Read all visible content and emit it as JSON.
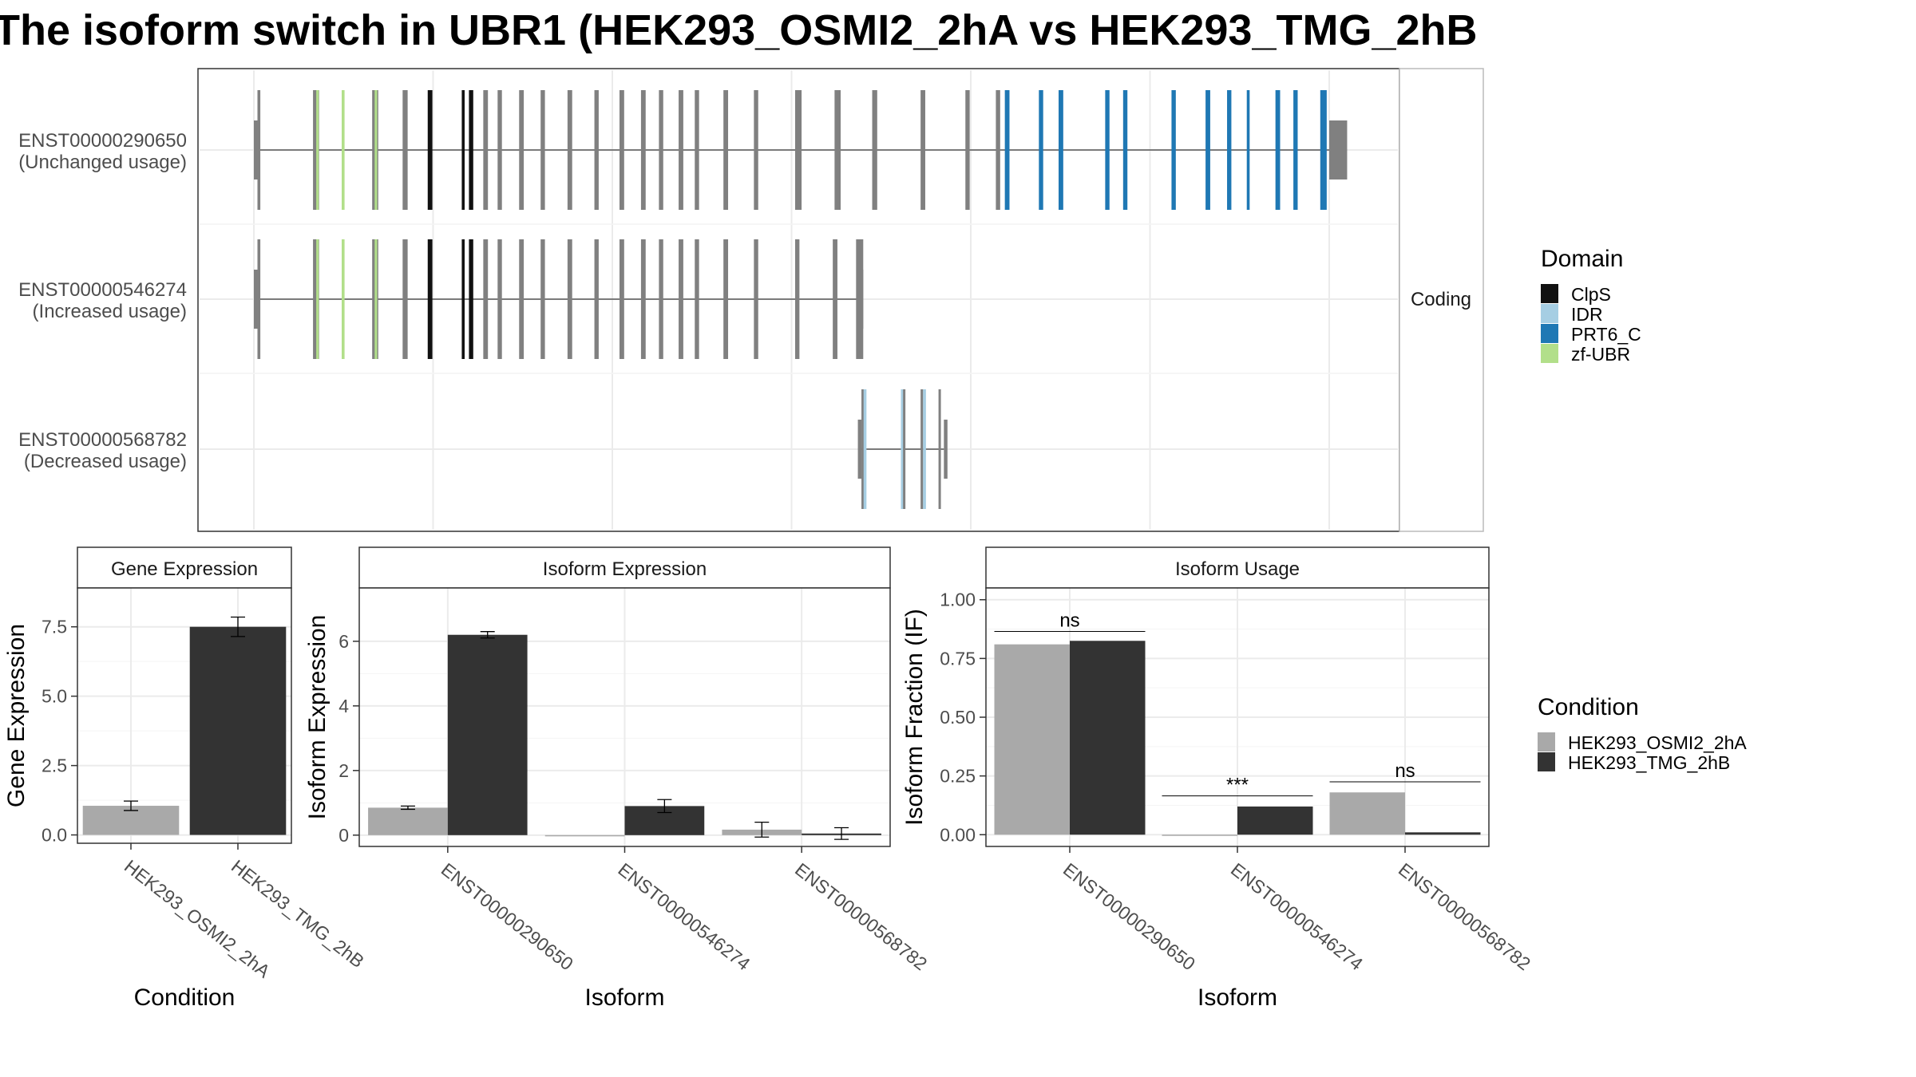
{
  "title": "The isoform switch in UBR1 (HEK293_OSMI2_2hA vs HEK293_TMG_2hB",
  "colors": {
    "cond_A": "#a9a9a9",
    "cond_B": "#333333",
    "exon": "#808080",
    "intron": "#555555",
    "domains": {
      "ClpS": "#111111",
      "IDR": "#a6cee3",
      "PRT6_C": "#1f78b4",
      "zf-UBR": "#b2df8a"
    }
  },
  "chart_data": [
    {
      "type": "gene_structure",
      "strip_label": "Coding",
      "legend_title": "Domain",
      "domains": [
        "ClpS",
        "IDR",
        "PRT6_C",
        "zf-UBR"
      ],
      "transcripts": [
        {
          "id": "ENST00000290650",
          "usage": "(Unchanged usage)",
          "span": [
            1.0,
            300.0
          ],
          "utr": [
            [
              0.0,
              1.0
            ],
            [
              300.0,
              305.0
            ]
          ],
          "exons": [
            {
              "x": 1.0,
              "w": 0.8,
              "d": null
            },
            {
              "x": 16.5,
              "w": 1.7,
              "d": null
            },
            {
              "x": 17.4,
              "w": 0.7,
              "d": "zf-UBR"
            },
            {
              "x": 24.5,
              "w": 0.8,
              "d": "zf-UBR"
            },
            {
              "x": 33.0,
              "w": 1.7,
              "d": null
            },
            {
              "x": 33.7,
              "w": 0.7,
              "d": "zf-UBR"
            },
            {
              "x": 41.5,
              "w": 1.4,
              "d": null
            },
            {
              "x": 48.5,
              "w": 1.3,
              "d": "ClpS"
            },
            {
              "x": 58.0,
              "w": 0.8,
              "d": "ClpS"
            },
            {
              "x": 60.0,
              "w": 1.2,
              "d": "ClpS"
            },
            {
              "x": 64.0,
              "w": 1.3,
              "d": null
            },
            {
              "x": 68.0,
              "w": 1.2,
              "d": null
            },
            {
              "x": 74.0,
              "w": 1.3,
              "d": null
            },
            {
              "x": 80.0,
              "w": 1.2,
              "d": null
            },
            {
              "x": 87.5,
              "w": 1.3,
              "d": null
            },
            {
              "x": 95.0,
              "w": 1.2,
              "d": null
            },
            {
              "x": 102.0,
              "w": 1.3,
              "d": null
            },
            {
              "x": 108.0,
              "w": 1.3,
              "d": null
            },
            {
              "x": 113.0,
              "w": 1.2,
              "d": null
            },
            {
              "x": 118.5,
              "w": 1.3,
              "d": null
            },
            {
              "x": 123.0,
              "w": 1.2,
              "d": null
            },
            {
              "x": 131.0,
              "w": 1.3,
              "d": null
            },
            {
              "x": 139.5,
              "w": 1.2,
              "d": null
            },
            {
              "x": 151.0,
              "w": 1.8,
              "d": null
            },
            {
              "x": 162.0,
              "w": 1.7,
              "d": null
            },
            {
              "x": 172.5,
              "w": 1.4,
              "d": null
            },
            {
              "x": 186.0,
              "w": 1.3,
              "d": null
            },
            {
              "x": 198.5,
              "w": 1.2,
              "d": null
            },
            {
              "x": 207.0,
              "w": 1.2,
              "d": null
            },
            {
              "x": 209.5,
              "w": 1.3,
              "d": "PRT6_C"
            },
            {
              "x": 219.0,
              "w": 1.2,
              "d": "PRT6_C"
            },
            {
              "x": 224.5,
              "w": 1.3,
              "d": "PRT6_C"
            },
            {
              "x": 237.5,
              "w": 1.2,
              "d": "PRT6_C"
            },
            {
              "x": 242.5,
              "w": 1.2,
              "d": "PRT6_C"
            },
            {
              "x": 256.0,
              "w": 1.2,
              "d": "PRT6_C"
            },
            {
              "x": 265.5,
              "w": 1.3,
              "d": "PRT6_C"
            },
            {
              "x": 271.5,
              "w": 1.2,
              "d": "PRT6_C"
            },
            {
              "x": 277.0,
              "w": 0.8,
              "d": "PRT6_C"
            },
            {
              "x": 285.0,
              "w": 1.3,
              "d": "PRT6_C"
            },
            {
              "x": 290.0,
              "w": 1.2,
              "d": "PRT6_C"
            },
            {
              "x": 297.5,
              "w": 1.8,
              "d": "PRT6_C"
            }
          ]
        },
        {
          "id": "ENST00000546274",
          "usage": "(Increased usage)",
          "span": [
            1.0,
            169.5
          ],
          "utr": [
            [
              0.0,
              1.0
            ],
            [
              169.0,
              170.0
            ]
          ],
          "exons": [
            {
              "x": 1.0,
              "w": 0.8,
              "d": null
            },
            {
              "x": 16.5,
              "w": 1.7,
              "d": null
            },
            {
              "x": 17.4,
              "w": 0.7,
              "d": "zf-UBR"
            },
            {
              "x": 24.5,
              "w": 0.8,
              "d": "zf-UBR"
            },
            {
              "x": 33.0,
              "w": 1.7,
              "d": null
            },
            {
              "x": 33.7,
              "w": 0.7,
              "d": "zf-UBR"
            },
            {
              "x": 41.5,
              "w": 1.4,
              "d": null
            },
            {
              "x": 48.5,
              "w": 1.3,
              "d": "ClpS"
            },
            {
              "x": 58.0,
              "w": 0.8,
              "d": "ClpS"
            },
            {
              "x": 60.0,
              "w": 1.2,
              "d": "ClpS"
            },
            {
              "x": 64.0,
              "w": 1.3,
              "d": null
            },
            {
              "x": 68.0,
              "w": 1.2,
              "d": null
            },
            {
              "x": 74.0,
              "w": 1.3,
              "d": null
            },
            {
              "x": 80.0,
              "w": 1.2,
              "d": null
            },
            {
              "x": 87.5,
              "w": 1.3,
              "d": null
            },
            {
              "x": 95.0,
              "w": 1.2,
              "d": null
            },
            {
              "x": 102.0,
              "w": 1.3,
              "d": null
            },
            {
              "x": 108.0,
              "w": 1.3,
              "d": null
            },
            {
              "x": 113.0,
              "w": 1.2,
              "d": null
            },
            {
              "x": 118.5,
              "w": 1.3,
              "d": null
            },
            {
              "x": 123.0,
              "w": 1.2,
              "d": null
            },
            {
              "x": 131.0,
              "w": 1.3,
              "d": null
            },
            {
              "x": 139.5,
              "w": 1.2,
              "d": null
            },
            {
              "x": 151.0,
              "w": 1.2,
              "d": null
            },
            {
              "x": 161.5,
              "w": 1.3,
              "d": null
            },
            {
              "x": 168.0,
              "w": 2.0,
              "d": null
            }
          ]
        },
        {
          "id": "ENST00000568782",
          "usage": "(Decreased usage)",
          "span": [
            169.5,
            192.5
          ],
          "utr": [
            [
              168.5,
              169.5
            ],
            [
              192.5,
              193.5
            ]
          ],
          "exons": [
            {
              "x": 169.5,
              "w": 0.6,
              "d": null
            },
            {
              "x": 170.1,
              "w": 0.8,
              "d": "IDR"
            },
            {
              "x": 180.5,
              "w": 0.6,
              "d": "IDR"
            },
            {
              "x": 181.1,
              "w": 0.6,
              "d": null
            },
            {
              "x": 186.0,
              "w": 0.7,
              "d": null
            },
            {
              "x": 186.7,
              "w": 0.8,
              "d": "IDR"
            },
            {
              "x": 191.0,
              "w": 0.5,
              "d": null
            }
          ]
        }
      ]
    },
    {
      "type": "bar",
      "panel_title": "Gene Expression",
      "xlabel": "Condition",
      "ylabel": "Gene Expression",
      "ylim": [
        -0.3,
        8.9
      ],
      "yticks": [
        "0.0",
        "2.5",
        "5.0",
        "7.5"
      ],
      "categories": [
        "HEK293_OSMI2_2hA",
        "HEK293_TMG_2hB"
      ],
      "values": [
        1.05,
        7.5
      ],
      "err": [
        0.17,
        0.35
      ]
    },
    {
      "type": "bar",
      "panel_title": "Isoform Expression",
      "xlabel": "Isoform",
      "ylabel": "Isoform Expression",
      "ylim": [
        -0.35,
        7.65
      ],
      "yticks": [
        "0",
        "2",
        "4",
        "6"
      ],
      "categories": [
        "ENST00000290650",
        "ENST00000546274",
        "ENST00000568782"
      ],
      "series": [
        {
          "name": "HEK293_OSMI2_2hA",
          "values": [
            0.85,
            0.0,
            0.17
          ],
          "err": [
            0.05,
            0.0,
            0.23
          ]
        },
        {
          "name": "HEK293_TMG_2hB",
          "values": [
            6.2,
            0.9,
            0.05
          ],
          "err": [
            0.1,
            0.2,
            0.18
          ]
        }
      ]
    },
    {
      "type": "bar",
      "panel_title": "Isoform Usage",
      "xlabel": "Isoform",
      "ylabel": "Isoform Fraction (IF)",
      "ylim": [
        -0.05,
        1.05
      ],
      "yticks": [
        "0.00",
        "0.25",
        "0.50",
        "0.75",
        "1.00"
      ],
      "categories": [
        "ENST00000290650",
        "ENST00000546274",
        "ENST00000568782"
      ],
      "series": [
        {
          "name": "HEK293_OSMI2_2hA",
          "values": [
            0.81,
            0.0,
            0.18
          ]
        },
        {
          "name": "HEK293_TMG_2hB",
          "values": [
            0.825,
            0.12,
            0.01
          ]
        }
      ],
      "significance": [
        {
          "label": "ns",
          "y": 0.865
        },
        {
          "label": "***",
          "y": 0.165
        },
        {
          "label": "ns",
          "y": 0.225
        }
      ]
    }
  ],
  "legend_condition": {
    "title": "Condition",
    "items": [
      "HEK293_OSMI2_2hA",
      "HEK293_TMG_2hB"
    ]
  }
}
